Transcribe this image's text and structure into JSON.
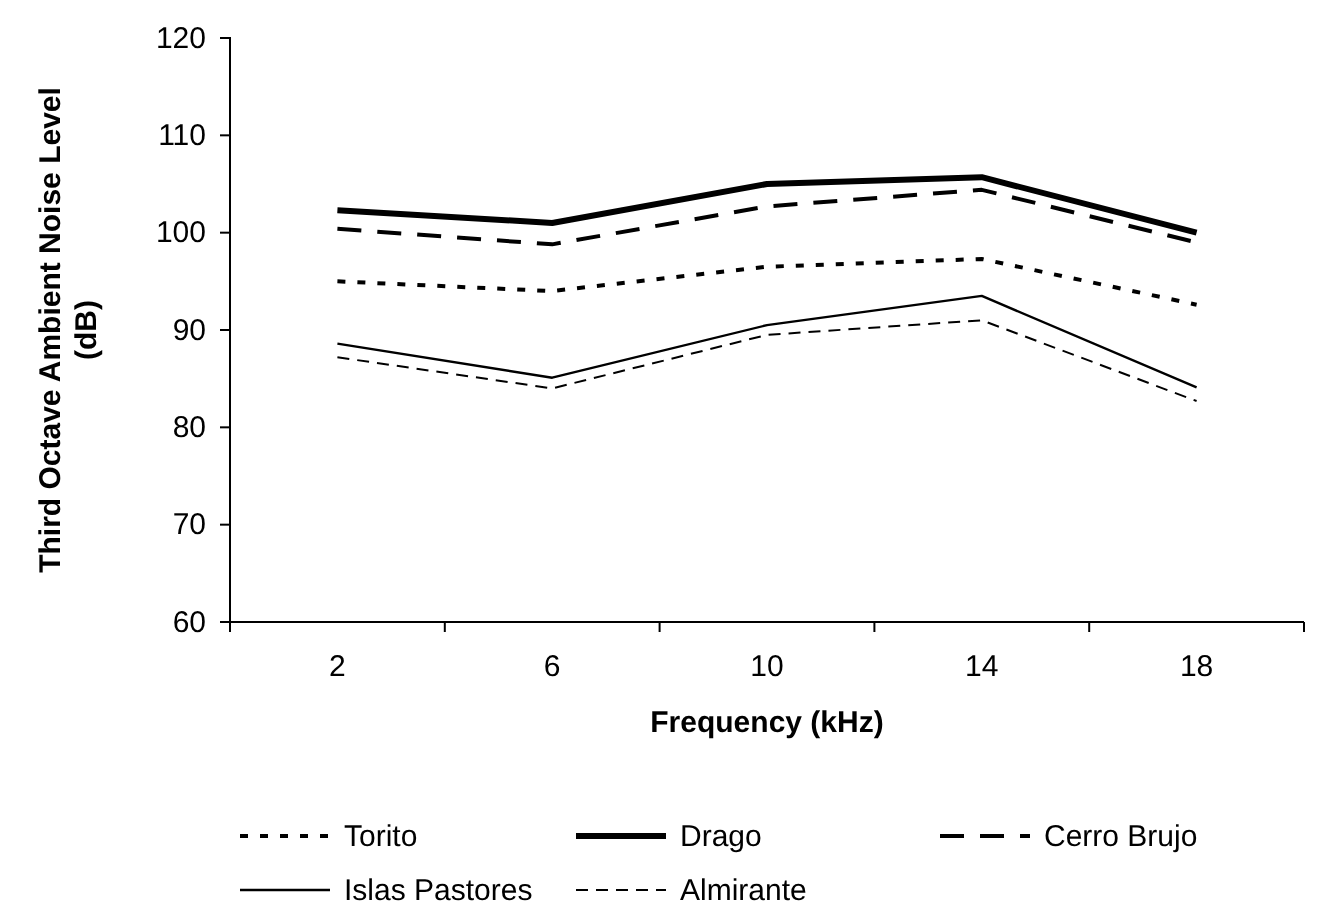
{
  "chart_data": {
    "type": "line",
    "xlabel": "Frequency (kHz)",
    "ylabel": "Third Octave Ambient Noise Level (dB)",
    "categories": [
      "2",
      "6",
      "10",
      "14",
      "18"
    ],
    "ylim": [
      60,
      120
    ],
    "yticks": [
      60,
      70,
      80,
      90,
      100,
      110,
      120
    ],
    "grid": false,
    "legend": "bottom",
    "marker": "none",
    "series": [
      {
        "name": "Torito",
        "color": "#000000",
        "line_style": "dotted",
        "values": [
          95,
          94,
          96.5,
          97.3,
          92.6
        ]
      },
      {
        "name": "Drago",
        "color": "#000000",
        "line_style": "solid",
        "values": [
          102.3,
          101,
          105,
          105.7,
          100
        ]
      },
      {
        "name": "Cerro Brujo",
        "color": "#000000",
        "line_style": "dashed",
        "values": [
          100.4,
          98.8,
          102.7,
          104.4,
          99
        ]
      },
      {
        "name": "Islas Pastores",
        "color": "#000000",
        "line_style": "solid",
        "values": [
          88.6,
          85.1,
          90.5,
          93.5,
          84.1
        ]
      },
      {
        "name": "Almirante",
        "color": "#000000",
        "line_style": "dashed",
        "values": [
          87.2,
          84,
          89.5,
          91,
          82.7
        ]
      }
    ]
  }
}
